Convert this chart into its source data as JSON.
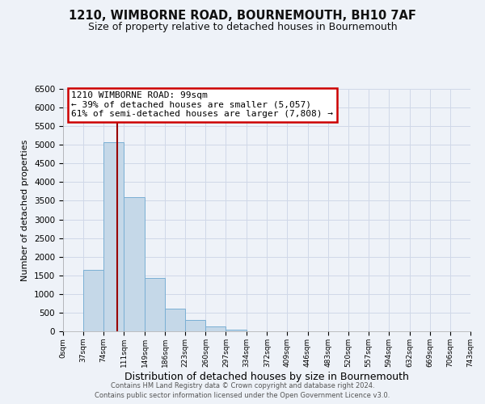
{
  "title": "1210, WIMBORNE ROAD, BOURNEMOUTH, BH10 7AF",
  "subtitle": "Size of property relative to detached houses in Bournemouth",
  "xlabel": "Distribution of detached houses by size in Bournemouth",
  "ylabel": "Number of detached properties",
  "bin_edges": [
    0,
    37,
    74,
    111,
    149,
    186,
    223,
    260,
    297,
    334,
    372,
    409,
    446,
    483,
    520,
    557,
    594,
    632,
    669,
    706,
    743
  ],
  "bin_counts": [
    0,
    1650,
    5080,
    3600,
    1420,
    610,
    300,
    140,
    50,
    0,
    0,
    0,
    0,
    0,
    0,
    0,
    0,
    0,
    0,
    0
  ],
  "bar_color": "#c5d8e8",
  "bar_edgecolor": "#7aafd4",
  "property_size": 99,
  "vline_color": "#990000",
  "annotation_text": "1210 WIMBORNE ROAD: 99sqm\n← 39% of detached houses are smaller (5,057)\n61% of semi-detached houses are larger (7,808) →",
  "annotation_box_edgecolor": "#cc0000",
  "annotation_box_facecolor": "#ffffff",
  "ylim": [
    0,
    6500
  ],
  "yticks": [
    0,
    500,
    1000,
    1500,
    2000,
    2500,
    3000,
    3500,
    4000,
    4500,
    5000,
    5500,
    6000,
    6500
  ],
  "xtick_labels": [
    "0sqm",
    "37sqm",
    "74sqm",
    "111sqm",
    "149sqm",
    "186sqm",
    "223sqm",
    "260sqm",
    "297sqm",
    "334sqm",
    "372sqm",
    "409sqm",
    "446sqm",
    "483sqm",
    "520sqm",
    "557sqm",
    "594sqm",
    "632sqm",
    "669sqm",
    "706sqm",
    "743sqm"
  ],
  "grid_color": "#d0d8e8",
  "footer1": "Contains HM Land Registry data © Crown copyright and database right 2024.",
  "footer2": "Contains public sector information licensed under the Open Government Licence v3.0.",
  "bg_color": "#eef2f8",
  "title_fontsize": 10.5,
  "subtitle_fontsize": 9,
  "ylabel_fontsize": 8,
  "xlabel_fontsize": 9
}
